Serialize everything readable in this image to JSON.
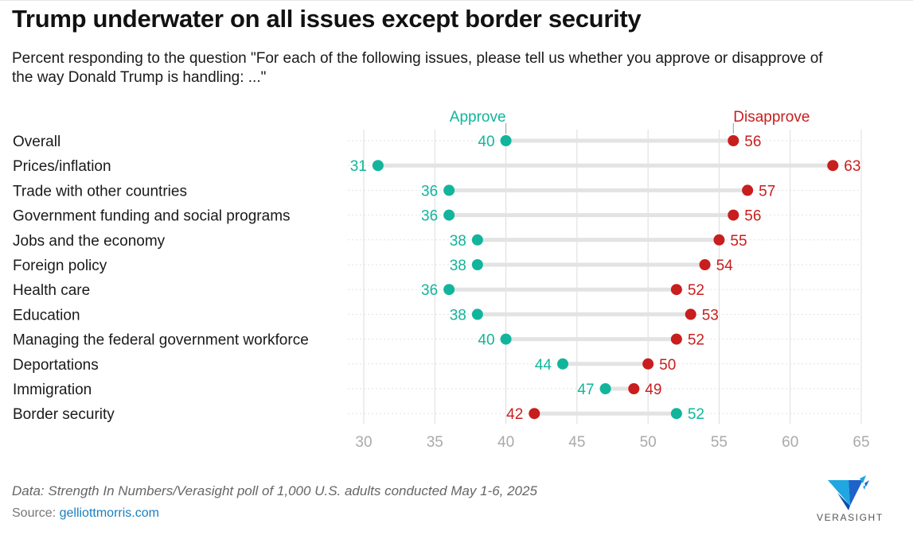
{
  "title": "Trump underwater on all issues except border security",
  "subtitle": "Percent responding to the question \"For each of the following issues, please tell us whether you approve or disapprove of the way Donald Trump is handling: ...\"",
  "footer": {
    "note": "Data: Strength In Numbers/Verasight poll of 1,000 U.S. adults conducted May 1-6, 2025",
    "source_label": "Source:",
    "source_link": "gelliottmorris.com"
  },
  "logo": {
    "text": "VERASIGHT",
    "icon": "verasight-v-logo-icon"
  },
  "colors": {
    "approve": "#12b59b",
    "disapprove": "#c81e1e",
    "connector": "#e3e3e3",
    "grid": "#dcdcdc",
    "tick": "#aaaaaa"
  },
  "chart_data": {
    "type": "dot-plot",
    "categories": [
      "Overall",
      "Prices/inflation",
      "Trade with other countries",
      "Government funding and social programs",
      "Jobs and the economy",
      "Foreign policy",
      "Health care",
      "Education",
      "Managing the federal government workforce",
      "Deportations",
      "Immigration",
      "Border security"
    ],
    "series": [
      {
        "name": "Approve",
        "values": [
          40,
          31,
          36,
          36,
          38,
          38,
          36,
          38,
          40,
          44,
          47,
          52
        ]
      },
      {
        "name": "Disapprove",
        "values": [
          56,
          63,
          57,
          56,
          55,
          54,
          52,
          53,
          52,
          50,
          49,
          42
        ]
      }
    ],
    "xlim": [
      30,
      65
    ],
    "xticks": [
      30,
      35,
      40,
      45,
      50,
      55,
      60,
      65
    ],
    "grid": true,
    "legend": "inline-top"
  }
}
